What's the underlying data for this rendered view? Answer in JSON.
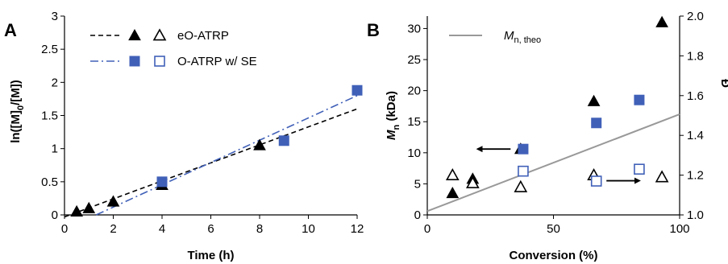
{
  "colors": {
    "black": "#000000",
    "blue": "#4060B8",
    "gray": "#999999"
  },
  "chart_data": [
    {
      "panel": "A",
      "type": "scatter",
      "xlabel": "Time (h)",
      "ylabel_parts": [
        "ln([M]",
        "0",
        "/[M])"
      ],
      "xlim": [
        0,
        12
      ],
      "ylim": [
        0,
        3
      ],
      "xticks": [
        "0",
        "2",
        "4",
        "6",
        "8",
        "10",
        "12"
      ],
      "yticks": [
        "0",
        "0.5",
        "1",
        "1.5",
        "2",
        "2.5",
        "3"
      ],
      "legend": [
        {
          "label": "eO-ATRP",
          "line_style": "dashed",
          "color": "#000000",
          "markers": [
            "filled-triangle",
            "open-triangle"
          ]
        },
        {
          "label": "O-ATRP w/ SE",
          "line_style": "dash-dot",
          "color": "#4060B8",
          "markers": [
            "filled-square",
            "open-square"
          ]
        }
      ],
      "series": [
        {
          "name": "eO-ATRP",
          "marker": "triangle",
          "color": "#000000",
          "x": [
            0.5,
            1,
            2,
            4,
            8
          ],
          "y": [
            0.05,
            0.1,
            0.2,
            0.45,
            1.05
          ]
        },
        {
          "name": "O-ATRP w/ SE",
          "marker": "square",
          "color": "#4060B8",
          "x": [
            4,
            9,
            12
          ],
          "y": [
            0.5,
            1.12,
            1.88
          ]
        }
      ],
      "fits": [
        {
          "style": "dashed",
          "color": "#000000",
          "x": [
            0,
            12
          ],
          "y": [
            -0.03,
            1.6
          ]
        },
        {
          "style": "dash-dot",
          "color": "#4060B8",
          "x": [
            1.3,
            12
          ],
          "y": [
            0,
            1.8
          ]
        }
      ]
    },
    {
      "panel": "B",
      "type": "scatter",
      "xlabel": "Conversion (%)",
      "ylabel_parts": [
        "M",
        "n",
        " (kDa)"
      ],
      "y2label": "Đ",
      "xlim": [
        0,
        100
      ],
      "ylim": [
        0,
        32
      ],
      "y2lim": [
        1.0,
        2.0
      ],
      "xticks": [
        "0",
        "50",
        "100"
      ],
      "yticks": [
        "0",
        "5",
        "10",
        "15",
        "20",
        "25",
        "30"
      ],
      "y2ticks": [
        "1.0",
        "1.2",
        "1.4",
        "1.6",
        "1.8",
        "2.0"
      ],
      "legend": [
        {
          "label_parts": [
            "M",
            "n, theo"
          ],
          "line_style": "solid",
          "color": "#999999"
        }
      ],
      "series": [
        {
          "name": "eO-ATRP Mn",
          "marker": "filled-triangle",
          "color": "#000000",
          "axis": "left",
          "x": [
            10,
            18,
            37,
            66,
            93
          ],
          "y": [
            3.5,
            5.8,
            10.6,
            18.3,
            31.0
          ]
        },
        {
          "name": "O-ATRP w/ SE Mn",
          "marker": "filled-square",
          "color": "#4060B8",
          "axis": "left",
          "x": [
            38,
            67,
            84
          ],
          "y": [
            10.6,
            14.8,
            18.5
          ]
        },
        {
          "name": "eO-ATRP dispersity",
          "marker": "open-triangle",
          "color": "#000000",
          "axis": "right",
          "x": [
            10,
            18,
            37,
            66,
            93
          ],
          "y": [
            1.2,
            1.16,
            1.14,
            1.2,
            1.19
          ]
        },
        {
          "name": "O-ATRP w/ SE dispersity",
          "marker": "open-square",
          "color": "#4060B8",
          "axis": "right",
          "x": [
            38,
            67,
            84
          ],
          "y": [
            1.22,
            1.17,
            1.23
          ]
        }
      ],
      "theory_line": {
        "x": [
          0,
          100
        ],
        "y": [
          0.6,
          16.2
        ]
      },
      "arrows": [
        {
          "direction": "left",
          "from": [
            33,
            10.6
          ],
          "to": [
            20,
            10.6
          ]
        },
        {
          "direction": "right",
          "from": [
            71,
            5.5
          ],
          "to": [
            84,
            5.5
          ]
        }
      ]
    }
  ]
}
